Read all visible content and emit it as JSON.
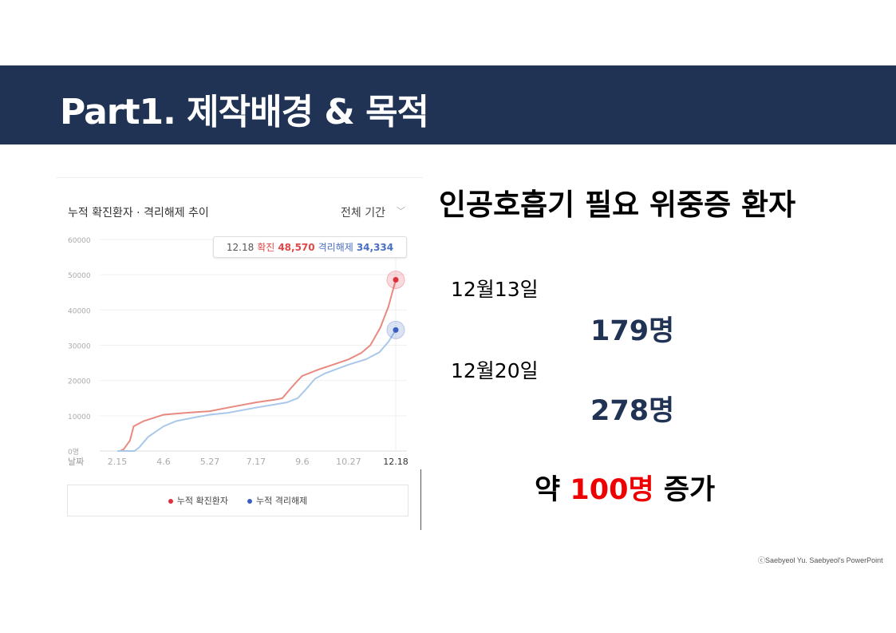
{
  "slide": {
    "title": "Part1. 제작배경 & 목적",
    "heading": "인공호흡기 필요 위중증 환자",
    "entries": [
      {
        "date": "12월13일",
        "count": "179명"
      },
      {
        "date": "12월20일",
        "count": "278명"
      }
    ],
    "summary_prefix": "약 ",
    "summary_highlight": "100명",
    "summary_suffix": " 증가",
    "credit": "ⓒSaebyeol Yu. Saebyeol's PowerPoint",
    "colors": {
      "banner": "#213354",
      "count": "#213354",
      "highlight": "#ee0000"
    }
  },
  "chart_data": {
    "type": "line",
    "title": "누적 확진환자 · 격리해제 추이",
    "period_selector": "전체 기간",
    "xlabel": "날짜",
    "x_ticks": [
      "2.15",
      "4.6",
      "5.27",
      "7.17",
      "9.6",
      "10.27",
      "12.18"
    ],
    "y_ticks": [
      "0명",
      "10000",
      "20000",
      "30000",
      "40000",
      "50000",
      "60000"
    ],
    "ylim": [
      0,
      60000
    ],
    "grid": true,
    "legend_position": "bottom",
    "tooltip": {
      "date": "12.18",
      "confirmed_label": "확진",
      "confirmed_value": "48,570",
      "released_label": "격리해제",
      "released_value": "34,334"
    },
    "series": [
      {
        "name": "누적 확진환자",
        "color": "#e88a80",
        "marker_color": "#e03040",
        "points": [
          [
            "2.18",
            0
          ],
          [
            "2.22",
            500
          ],
          [
            "2.29",
            3000
          ],
          [
            "3.4",
            7000
          ],
          [
            "3.15",
            8500
          ],
          [
            "3.31",
            9800
          ],
          [
            "4.6",
            10300
          ],
          [
            "4.30",
            10800
          ],
          [
            "5.27",
            11300
          ],
          [
            "6.20",
            12500
          ],
          [
            "7.17",
            13800
          ],
          [
            "8.10",
            14700
          ],
          [
            "8.15",
            15000
          ],
          [
            "8.25",
            18000
          ],
          [
            "9.1",
            20000
          ],
          [
            "9.6",
            21300
          ],
          [
            "9.25",
            23200
          ],
          [
            "10.10",
            24500
          ],
          [
            "10.27",
            26000
          ],
          [
            "11.10",
            27800
          ],
          [
            "11.20",
            30000
          ],
          [
            "12.1",
            35000
          ],
          [
            "12.10",
            41000
          ],
          [
            "12.18",
            48570
          ]
        ]
      },
      {
        "name": "누적 격리해제",
        "color": "#a9c8ea",
        "marker_color": "#3a5fc0",
        "points": [
          [
            "2.15",
            0
          ],
          [
            "3.5",
            0
          ],
          [
            "3.10",
            1000
          ],
          [
            "3.20",
            4000
          ],
          [
            "4.6",
            7000
          ],
          [
            "4.20",
            8500
          ],
          [
            "5.10",
            9500
          ],
          [
            "5.27",
            10300
          ],
          [
            "6.15",
            10800
          ],
          [
            "7.17",
            12300
          ],
          [
            "8.20",
            13800
          ],
          [
            "9.1",
            15000
          ],
          [
            "9.10",
            17500
          ],
          [
            "9.20",
            20500
          ],
          [
            "10.1",
            22000
          ],
          [
            "10.27",
            24500
          ],
          [
            "11.15",
            26000
          ],
          [
            "11.30",
            28000
          ],
          [
            "12.10",
            31000
          ],
          [
            "12.18",
            34334
          ]
        ]
      }
    ]
  }
}
